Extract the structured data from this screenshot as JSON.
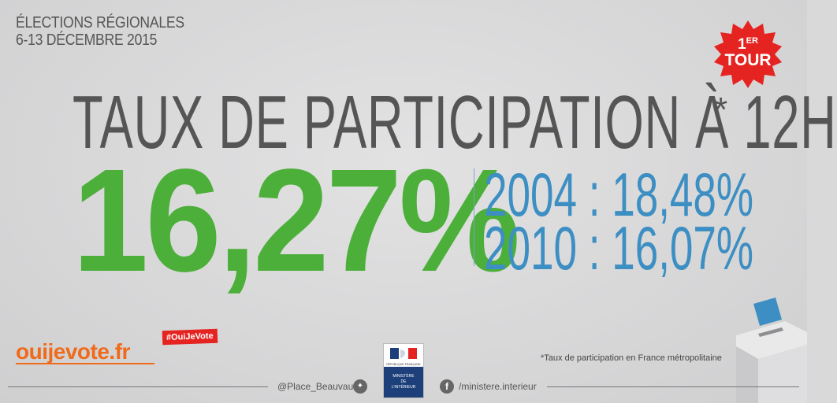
{
  "header": {
    "line1": "ÉLECTIONS RÉGIONALES",
    "line2": "6-13 DÉCEMBRE 2015"
  },
  "badge": {
    "number": "1",
    "suffix": "ER",
    "word": "TOUR",
    "color": "#e52421"
  },
  "headline": {
    "title": "TAUX DE PARTICIPATION À 12H",
    "asterisk": "*"
  },
  "main_value": {
    "text": "16,27%",
    "color": "#4caf3a"
  },
  "history": [
    {
      "text": "2004 : 18,48%"
    },
    {
      "text": "2010 : 16,07%"
    }
  ],
  "history_color": "#3d8fc3",
  "footer": {
    "site": "ouijevote.fr",
    "hashtag": "#OuiJeVote",
    "note": "*Taux de participation en France métropolitaine",
    "twitter": "@Place_Beauvau",
    "facebook": "/ministere.interieur",
    "ministry": {
      "line1": "MINISTÈRE",
      "line2": "DE",
      "line3": "L'INTÉRIEUR",
      "republic": "RÉPUBLIQUE FRANÇAISE"
    }
  },
  "icons": [
    "twitter-bird-icon",
    "facebook-f-icon",
    "ballot-box-icon",
    "marianne-logo"
  ],
  "accent_orange": "#f06a1b"
}
